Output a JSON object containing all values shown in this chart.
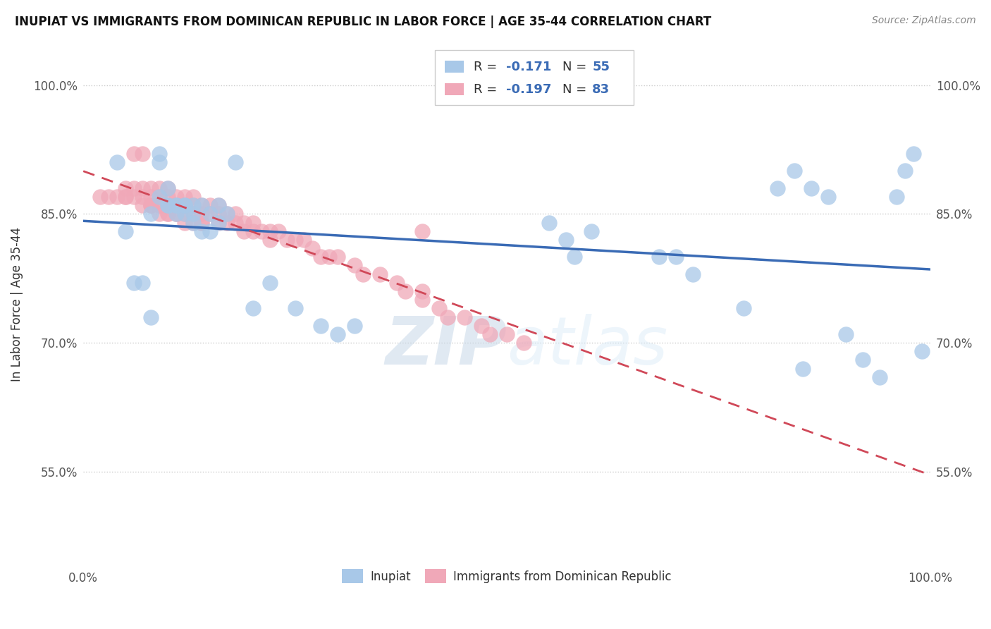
{
  "title": "INUPIAT VS IMMIGRANTS FROM DOMINICAN REPUBLIC IN LABOR FORCE | AGE 35-44 CORRELATION CHART",
  "source": "Source: ZipAtlas.com",
  "ylabel": "In Labor Force | Age 35-44",
  "xlim": [
    0.0,
    1.0
  ],
  "ylim": [
    0.44,
    1.05
  ],
  "ytick_positions": [
    0.55,
    0.7,
    0.85,
    1.0
  ],
  "ytick_labels": [
    "55.0%",
    "70.0%",
    "85.0%",
    "100.0%"
  ],
  "xtick_positions": [
    0.0,
    0.1,
    0.2,
    0.3,
    0.4,
    0.5,
    0.6,
    0.7,
    0.8,
    0.9,
    1.0
  ],
  "xtick_labels": [
    "0.0%",
    "",
    "",
    "",
    "",
    "",
    "",
    "",
    "",
    "",
    "100.0%"
  ],
  "legend_blue_R_val": "-0.171",
  "legend_blue_N_val": "55",
  "legend_pink_R_val": "-0.197",
  "legend_pink_N_val": "83",
  "blue_color": "#a8c8e8",
  "pink_color": "#f0a8b8",
  "blue_line_color": "#3a6bb5",
  "pink_line_color": "#d04858",
  "text_color": "#3a6bb5",
  "watermark_color": "#d8e8f5",
  "blue_scatter_x": [
    0.04,
    0.09,
    0.09,
    0.1,
    0.1,
    0.11,
    0.11,
    0.12,
    0.12,
    0.13,
    0.13,
    0.14,
    0.15,
    0.16,
    0.16,
    0.17,
    0.05,
    0.06,
    0.07,
    0.08,
    0.08,
    0.09,
    0.1,
    0.11,
    0.12,
    0.13,
    0.14,
    0.15,
    0.18,
    0.2,
    0.22,
    0.25,
    0.28,
    0.3,
    0.32,
    0.55,
    0.57,
    0.58,
    0.6,
    0.68,
    0.7,
    0.72,
    0.78,
    0.82,
    0.84,
    0.86,
    0.88,
    0.9,
    0.92,
    0.94,
    0.96,
    0.97,
    0.98,
    0.99,
    0.85
  ],
  "blue_scatter_y": [
    0.91,
    0.92,
    0.91,
    0.88,
    0.86,
    0.86,
    0.85,
    0.86,
    0.85,
    0.86,
    0.85,
    0.86,
    0.85,
    0.86,
    0.84,
    0.85,
    0.83,
    0.77,
    0.77,
    0.73,
    0.85,
    0.87,
    0.86,
    0.86,
    0.86,
    0.84,
    0.83,
    0.83,
    0.91,
    0.74,
    0.77,
    0.74,
    0.72,
    0.71,
    0.72,
    0.84,
    0.82,
    0.8,
    0.83,
    0.8,
    0.8,
    0.78,
    0.74,
    0.88,
    0.9,
    0.88,
    0.87,
    0.71,
    0.68,
    0.66,
    0.87,
    0.9,
    0.92,
    0.69,
    0.67
  ],
  "pink_scatter_x": [
    0.02,
    0.03,
    0.04,
    0.05,
    0.05,
    0.06,
    0.06,
    0.07,
    0.07,
    0.07,
    0.08,
    0.08,
    0.08,
    0.09,
    0.09,
    0.09,
    0.1,
    0.1,
    0.1,
    0.11,
    0.11,
    0.11,
    0.12,
    0.12,
    0.12,
    0.13,
    0.13,
    0.13,
    0.14,
    0.14,
    0.14,
    0.15,
    0.15,
    0.16,
    0.16,
    0.16,
    0.17,
    0.17,
    0.18,
    0.18,
    0.19,
    0.19,
    0.2,
    0.2,
    0.21,
    0.22,
    0.22,
    0.23,
    0.24,
    0.25,
    0.26,
    0.27,
    0.28,
    0.29,
    0.3,
    0.32,
    0.33,
    0.35,
    0.37,
    0.38,
    0.4,
    0.4,
    0.42,
    0.43,
    0.45,
    0.47,
    0.48,
    0.5,
    0.52,
    0.08,
    0.09,
    0.1,
    0.11,
    0.12,
    0.05,
    0.06,
    0.07,
    0.08,
    0.09,
    0.1,
    0.13,
    0.14,
    0.4
  ],
  "pink_scatter_y": [
    0.87,
    0.87,
    0.87,
    0.88,
    0.87,
    0.92,
    0.88,
    0.92,
    0.88,
    0.87,
    0.88,
    0.87,
    0.86,
    0.88,
    0.87,
    0.86,
    0.88,
    0.87,
    0.86,
    0.87,
    0.86,
    0.85,
    0.87,
    0.86,
    0.85,
    0.87,
    0.86,
    0.85,
    0.86,
    0.85,
    0.84,
    0.86,
    0.85,
    0.86,
    0.85,
    0.84,
    0.85,
    0.84,
    0.85,
    0.84,
    0.84,
    0.83,
    0.84,
    0.83,
    0.83,
    0.83,
    0.82,
    0.83,
    0.82,
    0.82,
    0.82,
    0.81,
    0.8,
    0.8,
    0.8,
    0.79,
    0.78,
    0.78,
    0.77,
    0.76,
    0.76,
    0.75,
    0.74,
    0.73,
    0.73,
    0.72,
    0.71,
    0.71,
    0.7,
    0.86,
    0.86,
    0.85,
    0.85,
    0.84,
    0.87,
    0.87,
    0.86,
    0.86,
    0.85,
    0.85,
    0.84,
    0.84,
    0.83
  ]
}
